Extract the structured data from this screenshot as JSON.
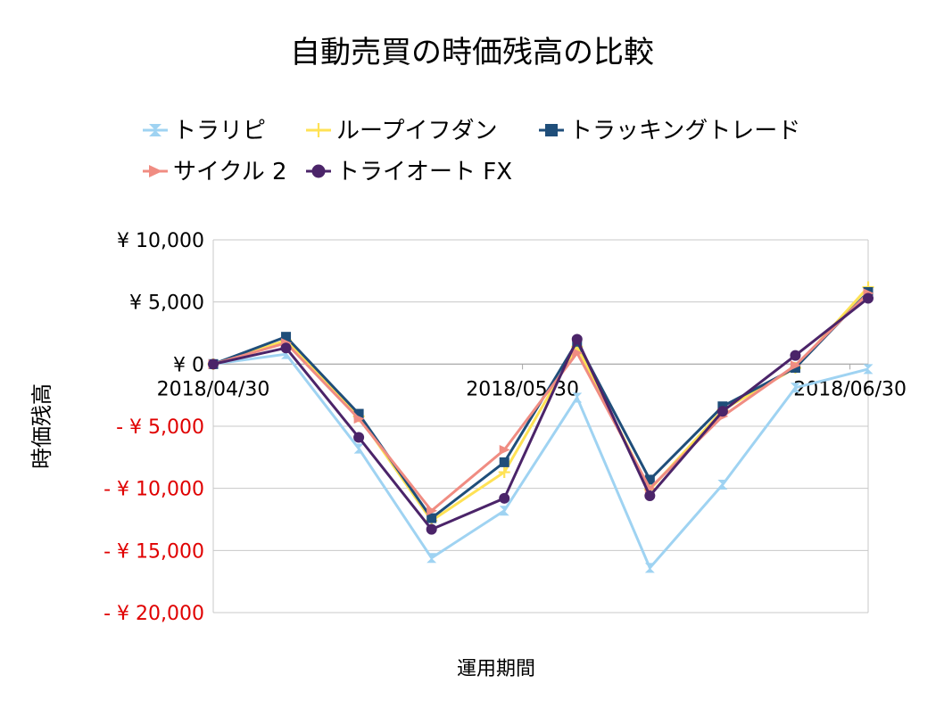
{
  "chart_data": {
    "type": "line",
    "title": "自動売買の時価残高の比較",
    "xlabel": "運用期間",
    "ylabel": "時価残高",
    "ylim": [
      -20000,
      10000
    ],
    "y_ticks": [
      10000,
      5000,
      0,
      -5000,
      -10000,
      -15000,
      -20000
    ],
    "y_tick_labels": [
      "¥ 10,000",
      "¥ 5,000",
      "¥ 0",
      "- ¥ 5,000",
      "- ¥ 10,000",
      "- ¥ 15,000",
      "- ¥ 20,000"
    ],
    "negative_label_color": "#e00000",
    "grid": true,
    "legend_position": "top",
    "x_tick_labels": [
      "2018/04/30",
      "2018/05/30",
      "2018/06/30"
    ],
    "x_tick_positions": [
      0,
      4.25,
      8.75
    ],
    "x_range": [
      0,
      9
    ],
    "x": [
      0,
      1,
      2,
      3,
      4,
      5,
      6,
      7,
      8,
      9
    ],
    "series": [
      {
        "name": "トラリピ",
        "color": "#9fd3f2",
        "marker": "hourglass",
        "values": [
          0,
          800,
          -6800,
          -15600,
          -11800,
          -2700,
          -16400,
          -9700,
          -1900,
          -400
        ]
      },
      {
        "name": "ループイフダン",
        "color": "#ffe255",
        "marker": "plus",
        "values": [
          0,
          1900,
          -4200,
          -12600,
          -8700,
          1400,
          -10100,
          -3700,
          -300,
          6200
        ]
      },
      {
        "name": "トラッキングトレード",
        "color": "#1f4e7a",
        "marker": "square",
        "values": [
          0,
          2200,
          -4000,
          -12400,
          -7900,
          1800,
          -9300,
          -3400,
          -300,
          5800
        ]
      },
      {
        "name": "サイクル 2",
        "color": "#f08c82",
        "marker": "triangle",
        "values": [
          0,
          1700,
          -4400,
          -11800,
          -6900,
          900,
          -10000,
          -4200,
          -100,
          5700
        ]
      },
      {
        "name": "トライオート FX",
        "color": "#4b2469",
        "marker": "circle",
        "values": [
          0,
          1300,
          -5900,
          -13300,
          -10800,
          2000,
          -10600,
          -3800,
          700,
          5300
        ]
      }
    ]
  }
}
